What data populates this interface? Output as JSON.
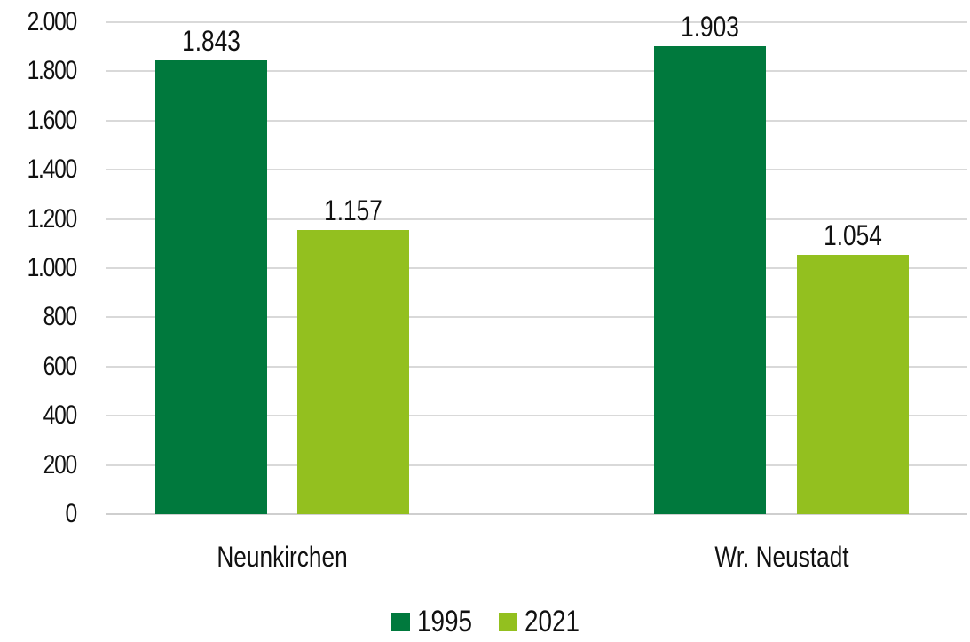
{
  "chart_data": {
    "type": "bar",
    "title": "",
    "xlabel": "",
    "ylabel": "",
    "categories": [
      "Neunkirchen",
      "Wr. Neustadt"
    ],
    "series": [
      {
        "name": "1995",
        "values": [
          1843,
          1903
        ],
        "color": "#00793D",
        "labels": [
          "1.843",
          "1.903"
        ]
      },
      {
        "name": "2021",
        "values": [
          1157,
          1054
        ],
        "color": "#93C01F",
        "labels": [
          "1.157",
          "1.054"
        ]
      }
    ],
    "ylim": [
      0,
      2000
    ],
    "yticks": [
      "0",
      "200",
      "400",
      "600",
      "800",
      "1.000",
      "1.200",
      "1.400",
      "1.600",
      "1.800",
      "2.000"
    ],
    "grid": true,
    "legend_position": "bottom"
  },
  "legend": {
    "items": [
      {
        "label": "1995",
        "color": "#00793D"
      },
      {
        "label": "2021",
        "color": "#93C01F"
      }
    ]
  }
}
